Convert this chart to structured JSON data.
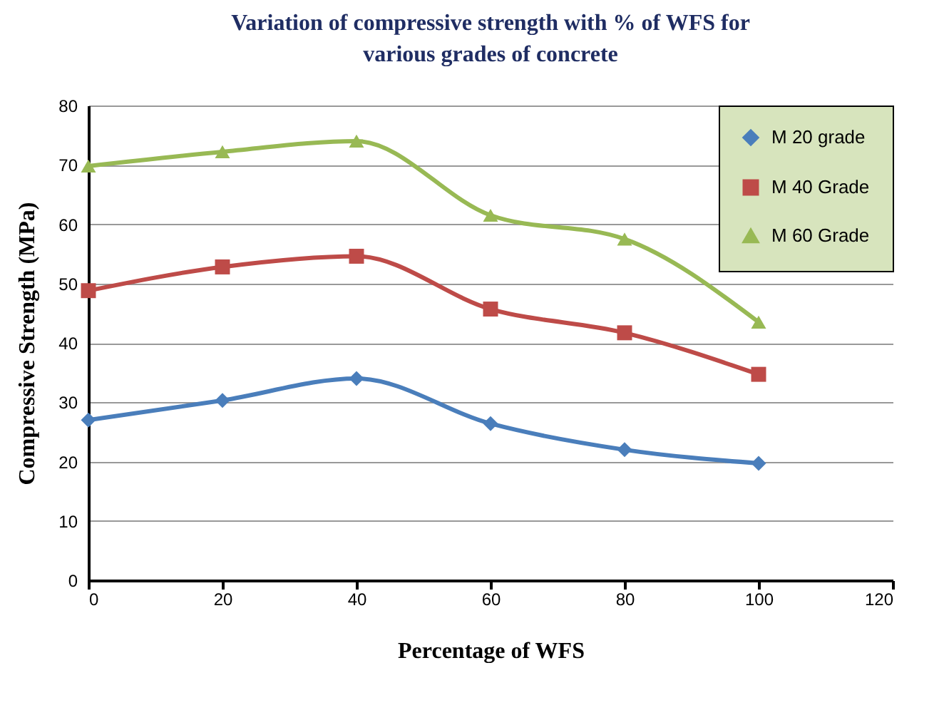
{
  "chart_data": {
    "type": "line",
    "title": "Variation of compressive strength with % of WFS for various grades of concrete",
    "xlabel": "Percentage of  WFS",
    "ylabel": "Compressive Strength (MPa)",
    "x": [
      0,
      20,
      40,
      60,
      80,
      100
    ],
    "series": [
      {
        "name": "M 20 grade",
        "color": "#4a7ebb",
        "marker": "diamond",
        "values": [
          27,
          30.3,
          34,
          26.4,
          22,
          19.7
        ]
      },
      {
        "name": "M 40 Grade",
        "color": "#be4b48",
        "marker": "square",
        "values": [
          48.8,
          52.8,
          54.6,
          45.7,
          41.7,
          34.7
        ]
      },
      {
        "name": "M 60 Grade",
        "color": "#98b954",
        "marker": "triangle",
        "values": [
          69.8,
          72.2,
          74,
          61.5,
          57.5,
          43.5
        ]
      }
    ],
    "xlim": [
      0,
      120
    ],
    "xticks": [
      0,
      20,
      40,
      60,
      80,
      100,
      120
    ],
    "ylim": [
      0,
      80
    ],
    "yticks": [
      0,
      10,
      20,
      30,
      40,
      50,
      60,
      70,
      80
    ],
    "grid": "y",
    "legend": "top right",
    "line_style": "solid"
  }
}
